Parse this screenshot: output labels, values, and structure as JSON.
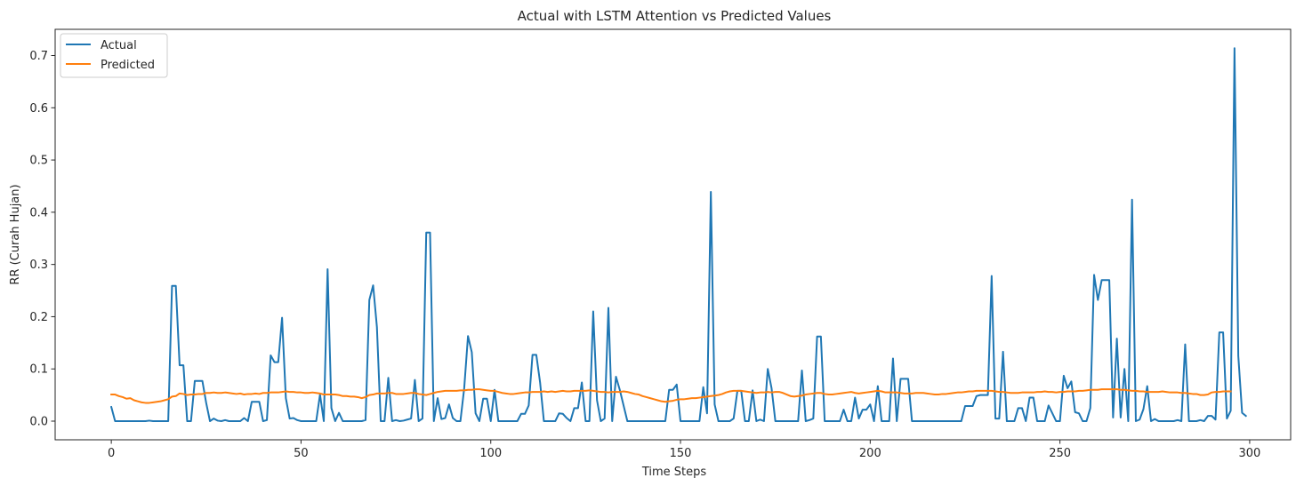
{
  "chart_data": {
    "type": "line",
    "title": "Actual with LSTM Attention vs Predicted Values",
    "xlabel": "Time Steps",
    "ylabel": "RR (Curah Hujan)",
    "xlim": [
      -14.8,
      310.8
    ],
    "ylim": [
      -0.0357,
      0.7502
    ],
    "x_ticks": [
      0,
      50,
      100,
      150,
      200,
      250,
      300
    ],
    "y_ticks": [
      0.0,
      0.1,
      0.2,
      0.3,
      0.4,
      0.5,
      0.6,
      0.7
    ],
    "y_tick_labels": [
      "0.0",
      "0.1",
      "0.2",
      "0.3",
      "0.4",
      "0.5",
      "0.6",
      "0.7"
    ],
    "grid": false,
    "legend_position": "top-left",
    "series": [
      {
        "name": "Actual",
        "color": "#1f77b4",
        "values": [
          0.027,
          0.0,
          0.0,
          0.0,
          0.0,
          0.0,
          0.0,
          0.0,
          0.0,
          0.0,
          0.001,
          0.0,
          0.0,
          0.0,
          0.0,
          0.0,
          0.259,
          0.259,
          0.107,
          0.107,
          0.0,
          0.0,
          0.077,
          0.077,
          0.077,
          0.035,
          0.0,
          0.005,
          0.001,
          0.0,
          0.002,
          0.0,
          0.0,
          0.0,
          0.0,
          0.006,
          0.0,
          0.037,
          0.037,
          0.037,
          0.0,
          0.002,
          0.126,
          0.113,
          0.113,
          0.198,
          0.044,
          0.005,
          0.006,
          0.002,
          0.0,
          0.0,
          0.0,
          0.0,
          0.0,
          0.051,
          0.0,
          0.291,
          0.025,
          0.0,
          0.016,
          0.0,
          0.0,
          0.0,
          0.0,
          0.0,
          0.0,
          0.002,
          0.232,
          0.26,
          0.18,
          0.0,
          0.0,
          0.083,
          0.0,
          0.002,
          0.0,
          0.001,
          0.003,
          0.005,
          0.079,
          0.0,
          0.005,
          0.361,
          0.361,
          0.0,
          0.044,
          0.004,
          0.006,
          0.032,
          0.006,
          0.0,
          0.0,
          0.063,
          0.163,
          0.132,
          0.015,
          0.0,
          0.043,
          0.043,
          0.0,
          0.06,
          0.0,
          0.0,
          0.0,
          0.0,
          0.0,
          0.0,
          0.014,
          0.014,
          0.03,
          0.127,
          0.127,
          0.074,
          0.0,
          0.0,
          0.0,
          0.0,
          0.015,
          0.014,
          0.006,
          0.0,
          0.025,
          0.025,
          0.074,
          0.0,
          0.0,
          0.21,
          0.04,
          0.0,
          0.005,
          0.217,
          0.0,
          0.085,
          0.06,
          0.03,
          0.0,
          0.0,
          0.0,
          0.0,
          0.0,
          0.0,
          0.0,
          0.0,
          0.0,
          0.0,
          0.0,
          0.06,
          0.06,
          0.07,
          0.0,
          0.0,
          0.0,
          0.0,
          0.0,
          0.0,
          0.065,
          0.015,
          0.439,
          0.032,
          0.0,
          0.0,
          0.0,
          0.0,
          0.005,
          0.058,
          0.058,
          0.0,
          0.0,
          0.059,
          0.0,
          0.003,
          0.0,
          0.1,
          0.063,
          0.0,
          0.0,
          0.0,
          0.0,
          0.0,
          0.0,
          0.0,
          0.097,
          0.0,
          0.002,
          0.005,
          0.162,
          0.162,
          0.0,
          0.0,
          0.0,
          0.0,
          0.0,
          0.022,
          0.0,
          0.0,
          0.045,
          0.005,
          0.022,
          0.022,
          0.032,
          0.0,
          0.067,
          0.0,
          0.0,
          0.0,
          0.12,
          0.0,
          0.081,
          0.081,
          0.081,
          0.0,
          0.0,
          0.0,
          0.0,
          0.0,
          0.0,
          0.0,
          0.0,
          0.0,
          0.0,
          0.0,
          0.0,
          0.0,
          0.0,
          0.029,
          0.029,
          0.029,
          0.048,
          0.05,
          0.05,
          0.05,
          0.278,
          0.005,
          0.005,
          0.133,
          0.0,
          0.0,
          0.0,
          0.025,
          0.025,
          0.0,
          0.045,
          0.045,
          0.0,
          0.0,
          0.0,
          0.03,
          0.015,
          0.0,
          0.0,
          0.087,
          0.063,
          0.076,
          0.017,
          0.015,
          0.0,
          0.0,
          0.025,
          0.28,
          0.232,
          0.27,
          0.27,
          0.27,
          0.007,
          0.158,
          0.007,
          0.1,
          0.0,
          0.424,
          0.0,
          0.003,
          0.023,
          0.067,
          0.0,
          0.004,
          0.0,
          0.0,
          0.0,
          0.0,
          0.0,
          0.002,
          0.0,
          0.147,
          0.0,
          0.0,
          0.0,
          0.002,
          0.0,
          0.01,
          0.01,
          0.003,
          0.17,
          0.17,
          0.005,
          0.02,
          0.714,
          0.125,
          0.016,
          0.01
        ]
      },
      {
        "name": "Predicted",
        "color": "#ff7f0e",
        "values": [
          0.051,
          0.051,
          0.048,
          0.046,
          0.043,
          0.044,
          0.04,
          0.038,
          0.036,
          0.035,
          0.035,
          0.036,
          0.037,
          0.038,
          0.04,
          0.042,
          0.047,
          0.048,
          0.053,
          0.052,
          0.05,
          0.051,
          0.051,
          0.052,
          0.052,
          0.054,
          0.054,
          0.055,
          0.054,
          0.054,
          0.055,
          0.054,
          0.053,
          0.052,
          0.053,
          0.051,
          0.052,
          0.052,
          0.053,
          0.052,
          0.054,
          0.054,
          0.055,
          0.055,
          0.055,
          0.056,
          0.057,
          0.056,
          0.056,
          0.055,
          0.055,
          0.054,
          0.054,
          0.055,
          0.054,
          0.053,
          0.051,
          0.051,
          0.051,
          0.051,
          0.05,
          0.048,
          0.048,
          0.047,
          0.047,
          0.046,
          0.044,
          0.046,
          0.05,
          0.051,
          0.053,
          0.053,
          0.053,
          0.054,
          0.054,
          0.052,
          0.052,
          0.052,
          0.053,
          0.054,
          0.054,
          0.052,
          0.051,
          0.05,
          0.052,
          0.054,
          0.056,
          0.057,
          0.058,
          0.058,
          0.058,
          0.058,
          0.059,
          0.059,
          0.06,
          0.06,
          0.061,
          0.061,
          0.06,
          0.059,
          0.058,
          0.058,
          0.056,
          0.054,
          0.053,
          0.052,
          0.052,
          0.053,
          0.054,
          0.055,
          0.055,
          0.056,
          0.056,
          0.056,
          0.057,
          0.056,
          0.057,
          0.056,
          0.057,
          0.058,
          0.057,
          0.057,
          0.058,
          0.058,
          0.058,
          0.058,
          0.059,
          0.058,
          0.057,
          0.056,
          0.056,
          0.055,
          0.056,
          0.056,
          0.056,
          0.057,
          0.056,
          0.054,
          0.052,
          0.051,
          0.048,
          0.046,
          0.044,
          0.042,
          0.04,
          0.038,
          0.037,
          0.038,
          0.039,
          0.041,
          0.042,
          0.042,
          0.043,
          0.044,
          0.044,
          0.045,
          0.046,
          0.047,
          0.048,
          0.049,
          0.05,
          0.052,
          0.055,
          0.057,
          0.058,
          0.058,
          0.058,
          0.057,
          0.056,
          0.055,
          0.054,
          0.055,
          0.055,
          0.056,
          0.055,
          0.056,
          0.056,
          0.054,
          0.051,
          0.048,
          0.047,
          0.048,
          0.049,
          0.051,
          0.052,
          0.053,
          0.054,
          0.054,
          0.052,
          0.051,
          0.051,
          0.052,
          0.053,
          0.054,
          0.055,
          0.056,
          0.054,
          0.053,
          0.054,
          0.055,
          0.056,
          0.057,
          0.058,
          0.057,
          0.055,
          0.055,
          0.055,
          0.055,
          0.054,
          0.053,
          0.053,
          0.053,
          0.054,
          0.054,
          0.054,
          0.053,
          0.052,
          0.051,
          0.051,
          0.052,
          0.052,
          0.053,
          0.054,
          0.055,
          0.055,
          0.056,
          0.057,
          0.057,
          0.058,
          0.058,
          0.058,
          0.058,
          0.058,
          0.057,
          0.056,
          0.056,
          0.055,
          0.054,
          0.054,
          0.054,
          0.055,
          0.055,
          0.055,
          0.055,
          0.056,
          0.056,
          0.057,
          0.056,
          0.056,
          0.055,
          0.056,
          0.056,
          0.057,
          0.057,
          0.057,
          0.058,
          0.058,
          0.059,
          0.06,
          0.06,
          0.06,
          0.061,
          0.061,
          0.061,
          0.061,
          0.061,
          0.06,
          0.06,
          0.059,
          0.058,
          0.058,
          0.057,
          0.057,
          0.056,
          0.056,
          0.056,
          0.056,
          0.057,
          0.056,
          0.055,
          0.055,
          0.055,
          0.054,
          0.054,
          0.053,
          0.052,
          0.052,
          0.05,
          0.05,
          0.051,
          0.055,
          0.056,
          0.056,
          0.057,
          0.057,
          0.057
        ]
      }
    ]
  }
}
